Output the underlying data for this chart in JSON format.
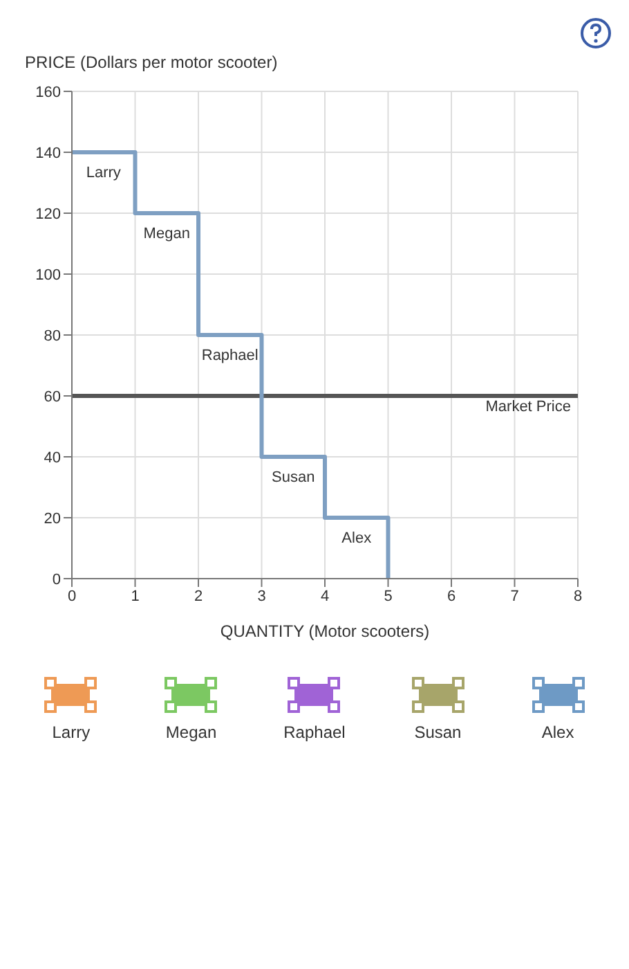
{
  "chart_data": {
    "type": "step",
    "xlabel": "QUANTITY (Motor scooters)",
    "ylabel": "PRICE (Dollars per motor scooter)",
    "x": [
      0,
      1,
      2,
      3,
      4,
      5
    ],
    "series": [
      {
        "color": "#7e9fc2",
        "values": [
          140,
          120,
          80,
          40,
          20,
          0
        ]
      }
    ],
    "xlim": [
      0,
      8
    ],
    "xticks": [
      0,
      1,
      2,
      3,
      4,
      5,
      6,
      7,
      8
    ],
    "ylim": [
      0,
      160
    ],
    "yticks": [
      0,
      20,
      40,
      60,
      80,
      100,
      120,
      140,
      160
    ],
    "grid": true,
    "marker": "none",
    "line_style": "solid",
    "ref_lines": [
      {
        "axis": "y",
        "value": 60,
        "label": "Market Price",
        "color": "#555555"
      }
    ],
    "annotations": [
      {
        "text": "Larry",
        "x": 0.5,
        "y": 140
      },
      {
        "text": "Megan",
        "x": 1.5,
        "y": 120
      },
      {
        "text": "Raphael",
        "x": 2.5,
        "y": 80
      },
      {
        "text": "Susan",
        "x": 3.5,
        "y": 40
      },
      {
        "text": "Alex",
        "x": 4.5,
        "y": 20
      },
      "Larry",
      "Megan",
      "Raphael",
      "Susan",
      "Alex"
    ]
  }
}
